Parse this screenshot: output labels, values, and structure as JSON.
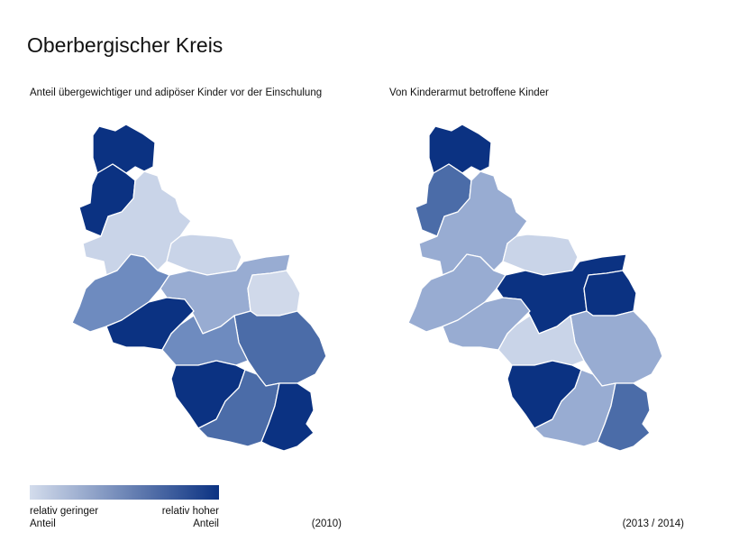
{
  "title": "Oberbergischer Kreis",
  "maps": [
    {
      "subtitle": "Anteil übergewichtiger und adipöser Kinder vor der Einschulung",
      "period": "(2010)"
    },
    {
      "subtitle": "Von Kinderarmut betroffene Kinder",
      "period": "(2013 / 2014)"
    }
  ],
  "legend": {
    "low": [
      "relativ geringer",
      "Anteil"
    ],
    "high": [
      "relativ hoher",
      "Anteil"
    ]
  }
}
